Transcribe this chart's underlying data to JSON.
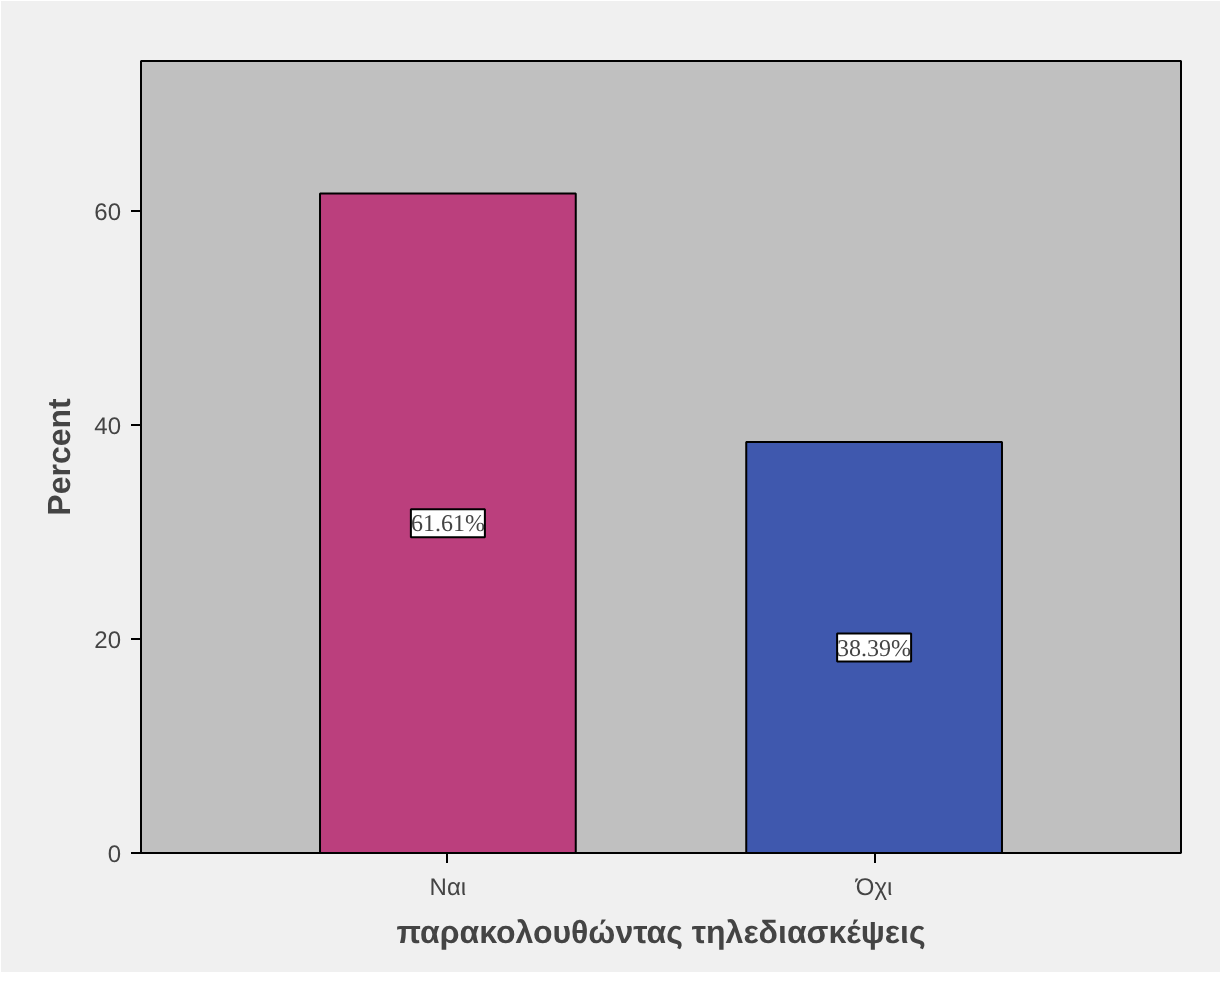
{
  "chart_data": {
    "type": "bar",
    "xlabel": "παρακολουθώντας τηλεδιασκέψεις",
    "ylabel": "Percent",
    "categories": [
      "Ναι",
      "Όχι"
    ],
    "values": [
      61.61,
      38.39
    ],
    "colors": [
      "#bb3f7d",
      "#3f58ae"
    ],
    "value_labels": [
      "61.61%",
      "38.39%"
    ],
    "ylim": [
      0,
      74
    ],
    "yticks": [
      0,
      20,
      40,
      60
    ],
    "grid": false
  }
}
